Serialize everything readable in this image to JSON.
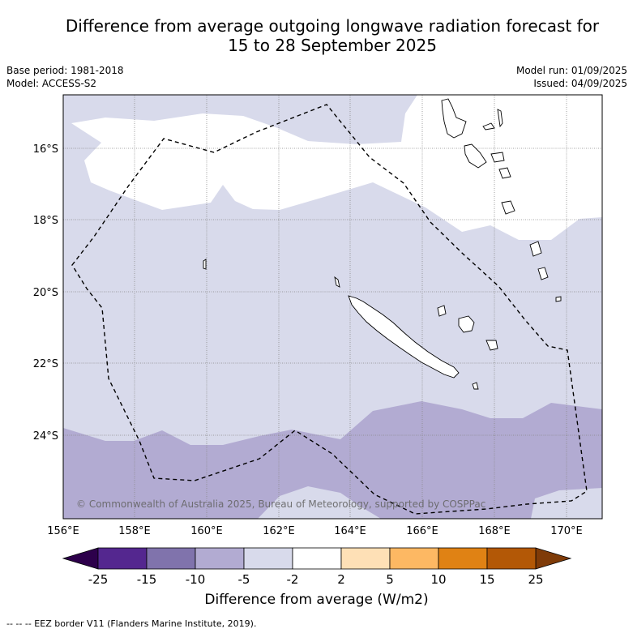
{
  "title_line1": "Difference from average outgoing longwave radiation forecast for",
  "title_line2": "15 to 28 September 2025",
  "base_period": "Base period: 1981-2018",
  "model": "Model: ACCESS-S2",
  "model_run": "Model run: 01/09/2025",
  "issued": "Issued: 04/09/2025",
  "copyright": "© Commonwealth of Australia 2025, Bureau of Meteorology, supported by COSPPac",
  "lat_labels": [
    "16°S",
    "18°S",
    "20°S",
    "22°S",
    "24°S"
  ],
  "lon_labels": [
    "156°E",
    "158°E",
    "160°E",
    "162°E",
    "164°E",
    "166°E",
    "168°E",
    "170°E"
  ],
  "colorbar": {
    "label": "Difference from average (W/m2)",
    "ticks": [
      "-25",
      "-15",
      "-10",
      "-5",
      "-2",
      "2",
      "5",
      "10",
      "15",
      "25"
    ],
    "colors": [
      "#54278f",
      "#8073ac",
      "#b2abd2",
      "#d8daeb",
      "#ffffff",
      "#fee0b6",
      "#fdb863",
      "#e08214",
      "#b35806"
    ],
    "under_color": "#2d004b",
    "over_color": "#7f3b08"
  },
  "footer": "--  --  -- EEZ border V11 (Flanders Marine Institute, 2019)."
}
